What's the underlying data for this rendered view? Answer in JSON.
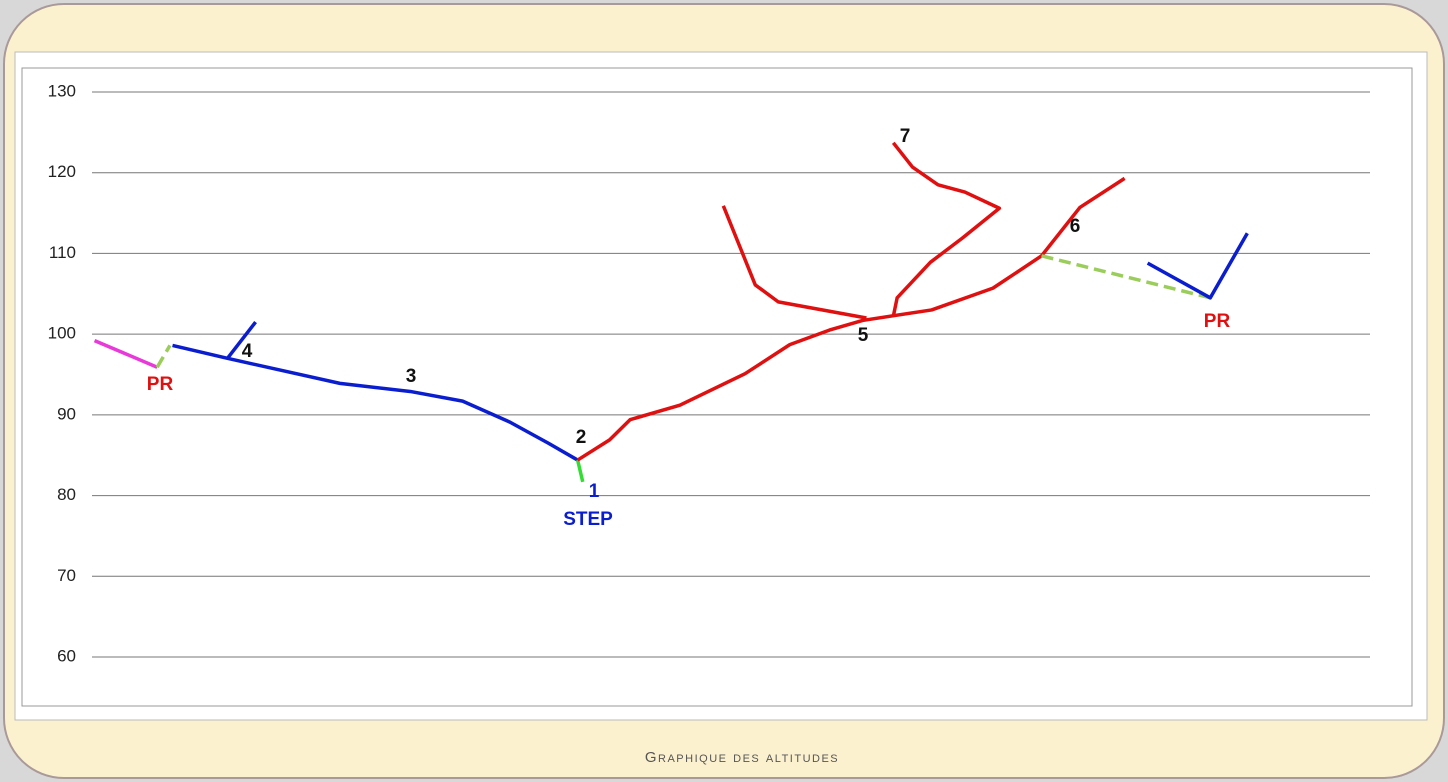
{
  "chart_data": {
    "type": "line",
    "footer": "Graphique des altitudes",
    "xlim": [
      0,
      100
    ],
    "ylim": [
      60,
      130
    ],
    "yticks": [
      60,
      70,
      80,
      90,
      100,
      110,
      120,
      130
    ],
    "grid": true,
    "series": [
      {
        "color": "#e83ad8",
        "x": [
          0.2,
          5.1
        ],
        "values": [
          99.2,
          95.9
        ]
      },
      {
        "color": "#9acd5a",
        "style": "dashed",
        "x": [
          5.1,
          6.1
        ],
        "values": [
          95.9,
          98.6
        ]
      },
      {
        "color": "#0a1ed0",
        "x": [
          6.3,
          10.6,
          19.4,
          24.9,
          29.0,
          32.7,
          35.7,
          38.0
        ],
        "values": [
          98.6,
          97.0,
          93.9,
          92.9,
          91.7,
          89.1,
          86.5,
          84.4
        ]
      },
      {
        "color": "#0a1ed0",
        "x": [
          10.6,
          12.8
        ],
        "values": [
          97.0,
          101.5
        ]
      },
      {
        "color": "#33dd33",
        "x": [
          38.0,
          38.4
        ],
        "values": [
          84.4,
          81.7
        ]
      },
      {
        "color": "#e01010",
        "x": [
          38.0,
          40.5,
          42.1,
          46.0,
          51.1,
          54.6,
          57.7,
          60.3,
          65.7,
          70.5,
          74.3,
          77.3,
          80.8
        ],
        "values": [
          84.4,
          86.9,
          89.4,
          91.2,
          95.1,
          98.7,
          100.5,
          101.7,
          103.0,
          105.7,
          109.7,
          115.7,
          119.3
        ]
      },
      {
        "color": "#e01010",
        "x": [
          49.4,
          51.9,
          53.7,
          60.6
        ],
        "values": [
          115.9,
          106.1,
          104.0,
          102.0
        ]
      },
      {
        "color": "#e01010",
        "x": [
          62.7,
          63.0,
          65.6,
          68.1,
          71.0,
          68.3,
          66.2,
          64.2,
          62.7
        ],
        "values": [
          102.2,
          104.5,
          108.9,
          111.9,
          115.6,
          117.6,
          118.5,
          120.7,
          123.7
        ]
      },
      {
        "color": "#9acd5a",
        "style": "dashed",
        "x": [
          74.3,
          87.5
        ],
        "values": [
          109.7,
          104.5
        ]
      },
      {
        "color": "#0a1ed0",
        "x": [
          82.6,
          87.5,
          90.4
        ],
        "values": [
          108.8,
          104.5,
          112.5
        ]
      }
    ],
    "annotations": [
      {
        "text": "PR",
        "color": "#e01010"
      },
      {
        "text": "4",
        "color": "#111111"
      },
      {
        "text": "3",
        "color": "#111111"
      },
      {
        "text": "2",
        "color": "#111111"
      },
      {
        "text": "1",
        "color": "#0a1ed0"
      },
      {
        "text": "STEP",
        "color": "#0a1ed0"
      },
      {
        "text": "5",
        "color": "#111111"
      },
      {
        "text": "7",
        "color": "#111111"
      },
      {
        "text": "6",
        "color": "#111111"
      },
      {
        "text": "PR",
        "color": "#e01010"
      }
    ]
  }
}
